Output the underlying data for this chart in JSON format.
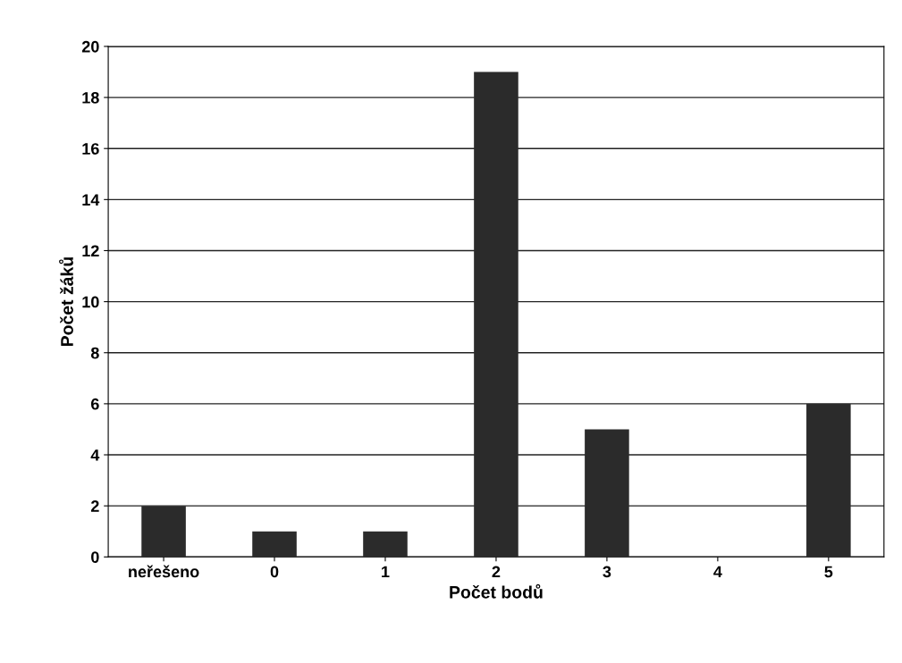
{
  "chart_data": {
    "type": "bar",
    "xlabel": "Počet bodů",
    "ylabel": "Počet žáků",
    "categories": [
      "neřešeno",
      "0",
      "1",
      "2",
      "3",
      "4",
      "5"
    ],
    "values": [
      2,
      1,
      1,
      19,
      5,
      0,
      6
    ],
    "color": "#2b2b2b",
    "ylim": [
      0,
      20
    ],
    "yticks": [
      0,
      2,
      4,
      6,
      8,
      10,
      12,
      14,
      16,
      18,
      20
    ],
    "grid": "y"
  }
}
